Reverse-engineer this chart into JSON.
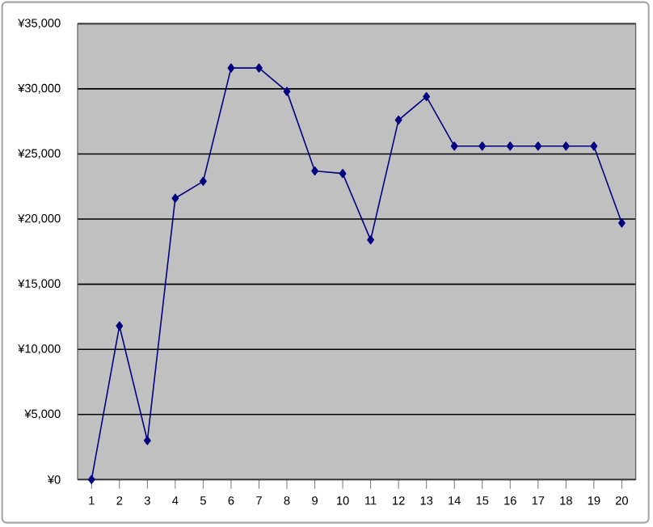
{
  "chart_data": {
    "type": "line",
    "categories": [
      "1",
      "2",
      "3",
      "4",
      "5",
      "6",
      "7",
      "8",
      "9",
      "10",
      "11",
      "12",
      "13",
      "14",
      "15",
      "16",
      "17",
      "18",
      "19",
      "20"
    ],
    "values": [
      0,
      11800,
      3000,
      21600,
      22900,
      31600,
      31600,
      29800,
      23700,
      23500,
      18400,
      27600,
      29400,
      25600,
      25600,
      25600,
      25600,
      25600,
      25600,
      19700
    ],
    "color": "#000080",
    "marker": "diamond",
    "line_style": "solid",
    "grid": "y",
    "ylim": [
      0,
      35000
    ],
    "yticks": [
      {
        "value": 0,
        "label": "¥0"
      },
      {
        "value": 5000,
        "label": "¥5,000"
      },
      {
        "value": 10000,
        "label": "¥10,000"
      },
      {
        "value": 15000,
        "label": "¥15,000"
      },
      {
        "value": 20000,
        "label": "¥20,000"
      },
      {
        "value": 25000,
        "label": "¥25,000"
      },
      {
        "value": 30000,
        "label": "¥30,000"
      },
      {
        "value": 35000,
        "label": "¥35,000"
      }
    ]
  }
}
